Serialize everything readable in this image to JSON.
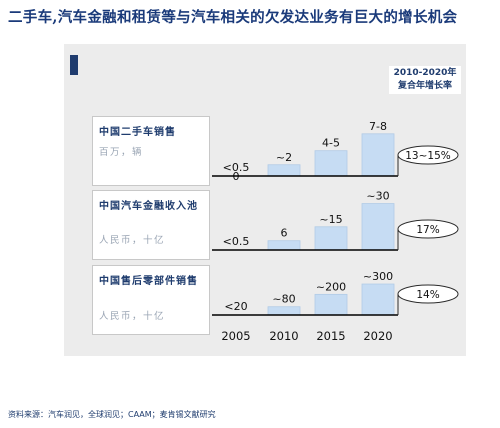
{
  "title": "二手车,汽车金融和租赁等与汽车相关的欠发达业务有巨大的增长机会",
  "header": {
    "line1": "2010-2020年",
    "line2": "复合年增长率"
  },
  "source": "资料来源：汽车润见，全球润见；CAAM；麦肯锡文献研究",
  "colors": {
    "bar": "#c6dcf3",
    "bar_border": "#b1cbe6",
    "title": "#1a3a7a",
    "navy": "#1f3c6e",
    "panel": "#ececec"
  },
  "chart_data": [
    {
      "type": "bar",
      "title": "中国二手车销售",
      "unit": "百万，辆",
      "categories": [
        "2005",
        "2010",
        "2015",
        "2020"
      ],
      "values": [
        0.4,
        2,
        4.5,
        7.5
      ],
      "value_labels": [
        "<0.5",
        "~2",
        "4-5",
        "7-8"
      ],
      "extra_label": "0",
      "ylim": [
        0,
        8
      ],
      "cagr": "13~15%"
    },
    {
      "type": "bar",
      "title": "中国汽车金融收入池",
      "unit": "人民币，十亿",
      "categories": [
        "2005",
        "2010",
        "2015",
        "2020"
      ],
      "values": [
        0.4,
        6,
        15,
        30
      ],
      "value_labels": [
        "<0.5",
        "6",
        "~15",
        "~30"
      ],
      "ylim": [
        0,
        31
      ],
      "cagr": "17%"
    },
    {
      "type": "bar",
      "title": "中国售后零部件销售",
      "unit": "人民币，十亿",
      "categories": [
        "2005",
        "2010",
        "2015",
        "2020"
      ],
      "values": [
        18,
        80,
        200,
        300
      ],
      "value_labels": [
        "<20",
        "~80",
        "~200",
        "~300"
      ],
      "ylim": [
        0,
        310
      ],
      "cagr": "14%"
    }
  ],
  "x_categories": [
    "2005",
    "2010",
    "2015",
    "2020"
  ]
}
